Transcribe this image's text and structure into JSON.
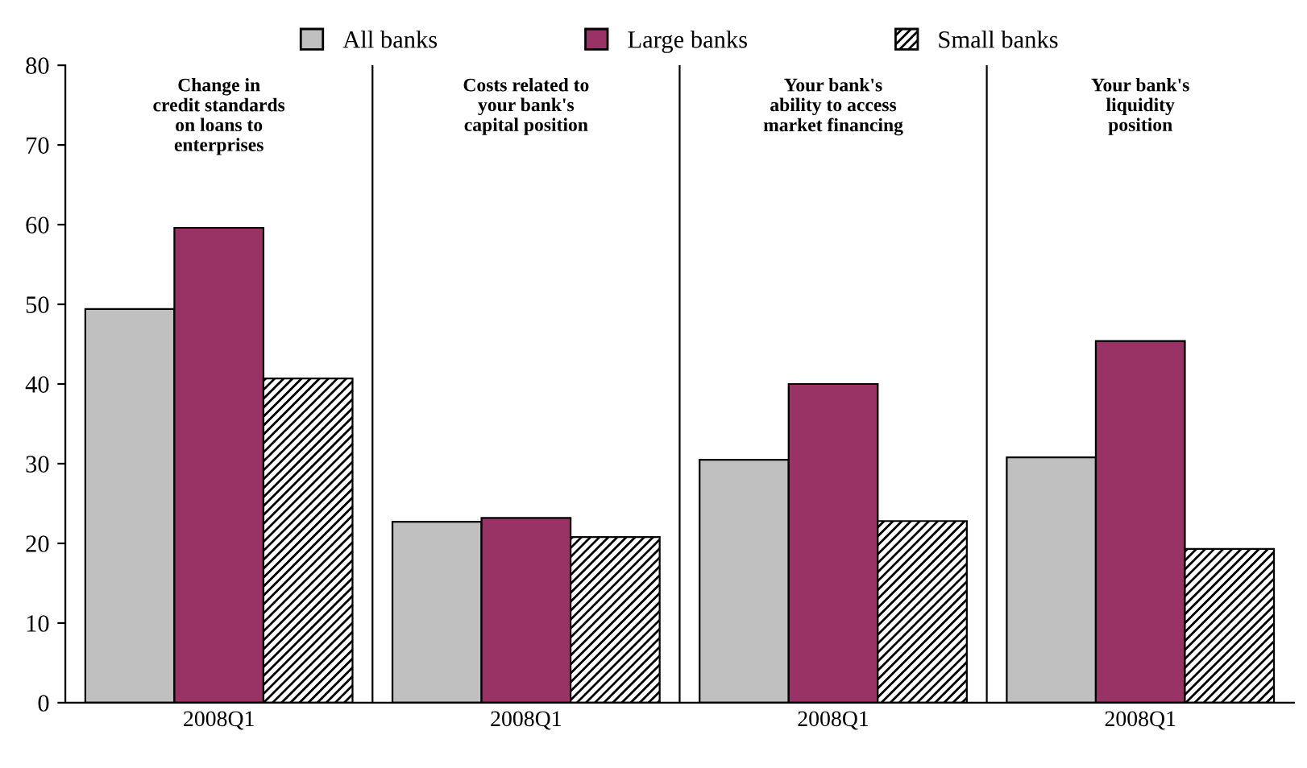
{
  "chart_data": {
    "type": "bar",
    "categories": [
      "2008Q1",
      "2008Q1",
      "2008Q1",
      "2008Q1"
    ],
    "series": [
      {
        "name": "All banks",
        "color": "#c0c0c0",
        "values": [
          49.4,
          22.7,
          30.5,
          30.8
        ]
      },
      {
        "name": "Large banks",
        "color": "#993366",
        "values": [
          59.6,
          23.2,
          40.0,
          45.4
        ]
      },
      {
        "name": "Small banks",
        "color": "#000000",
        "values": [
          40.7,
          20.8,
          22.8,
          19.3
        ]
      }
    ],
    "ylim": [
      0,
      80
    ],
    "yticks": [
      0,
      10,
      20,
      30,
      40,
      50,
      60,
      70,
      80
    ],
    "annotations": [
      "Change in\ncredit standards\non loans to\nenterprises",
      "Costs related to\nyour bank's\ncapital position",
      "Your bank's\nability to access\nmarket financing",
      "Your bank's\nliquidity\nposition"
    ],
    "grid": false,
    "legend": "top"
  }
}
